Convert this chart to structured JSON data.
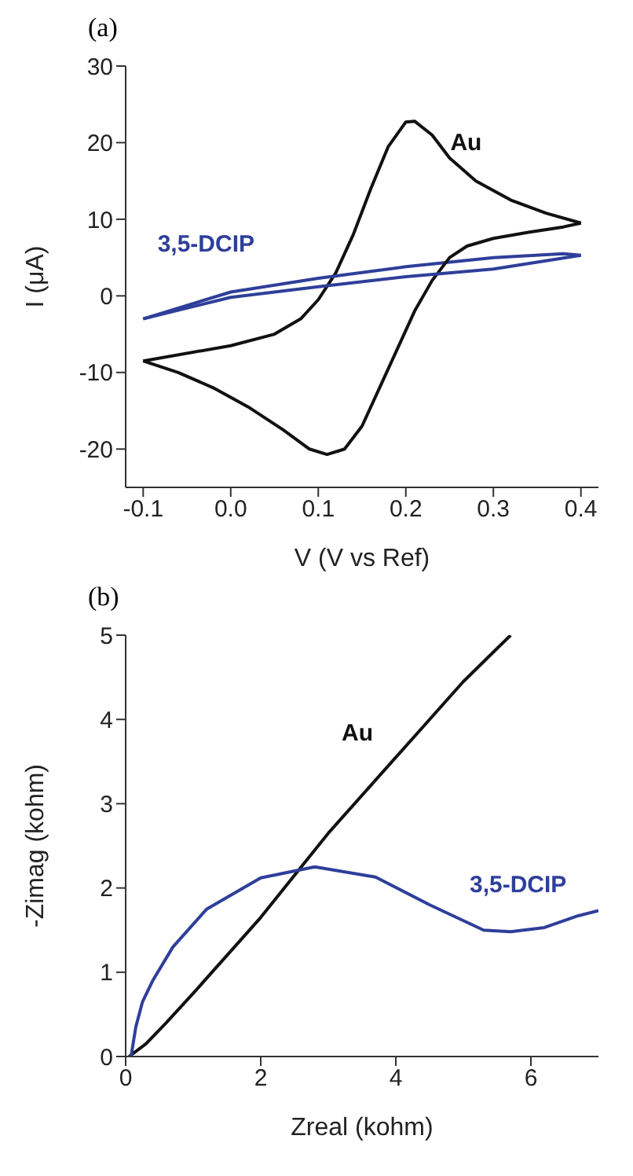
{
  "chart_data": [
    {
      "type": "line",
      "title": "(a)",
      "xlabel": "V (V vs Ref)",
      "ylabel": "I (μA)",
      "xlim": [
        -0.12,
        0.42
      ],
      "xticks": [
        {
          "value": -0.1,
          "label": "-0.1"
        },
        {
          "value": 0,
          "label": "0.0"
        },
        {
          "value": 0.1,
          "label": "0.1"
        },
        {
          "value": 0.2,
          "label": "0.2"
        },
        {
          "value": 0.3,
          "label": "0.3"
        },
        {
          "value": 0.4,
          "label": "0.4"
        }
      ],
      "ylim": [
        -25,
        30
      ],
      "yticks": [
        -20,
        -10,
        0,
        10,
        20,
        30
      ],
      "grid": false,
      "legend": false,
      "series": [
        {
          "name": "Au",
          "color": "#111111",
          "x": [
            -0.1,
            0,
            0.05,
            0.08,
            0.1,
            0.12,
            0.14,
            0.16,
            0.18,
            0.2,
            0.21,
            0.23,
            0.25,
            0.28,
            0.32,
            0.36,
            0.4
          ],
          "values": [
            -8.5,
            -6.5,
            -5,
            -3,
            -0.5,
            3,
            8,
            14,
            19.5,
            22.7,
            22.8,
            21,
            18,
            15,
            12.5,
            10.8,
            9.5
          ]
        },
        {
          "name": "3,5-DCIP",
          "color": "#2e3f9a",
          "x": [
            -0.1,
            0,
            0.1,
            0.2,
            0.3,
            0.38,
            0.4
          ],
          "values": [
            -3,
            0.5,
            2.3,
            3.8,
            5,
            5.5,
            5.3
          ]
        },
        {
          "color": "#111111",
          "x": [
            -0.1,
            -0.06,
            -0.02,
            0.02,
            0.06,
            0.09,
            0.11,
            0.13,
            0.15,
            0.17,
            0.19,
            0.21,
            0.23,
            0.25,
            0.27,
            0.3,
            0.34,
            0.38,
            0.4
          ],
          "values": [
            -8.5,
            -10,
            -12,
            -14.5,
            -17.5,
            -20,
            -20.7,
            -20,
            -17,
            -12,
            -7,
            -2,
            2,
            5,
            6.5,
            7.5,
            8.3,
            9,
            9.5
          ]
        },
        {
          "color": "#2e3f9a",
          "x": [
            -0.1,
            0,
            0.1,
            0.2,
            0.3,
            0.4
          ],
          "values": [
            -3,
            -0.2,
            1.2,
            2.5,
            3.5,
            5.3
          ]
        }
      ]
    },
    {
      "type": "line",
      "title": "(b)",
      "xlabel": "Zreal (kohm)",
      "ylabel": "-Zimag (kohm)",
      "xlim": [
        0,
        7
      ],
      "xticks": [
        0,
        2,
        4,
        6
      ],
      "ylim": [
        0,
        5
      ],
      "yticks": [
        0,
        1,
        2,
        3,
        4,
        5
      ],
      "grid": false,
      "legend": false,
      "series": [
        {
          "name": "Au",
          "color": "#111111",
          "x": [
            0.05,
            0.3,
            0.6,
            1,
            1.5,
            2,
            2.6,
            3,
            4,
            5,
            5.7
          ],
          "values": [
            0,
            0.15,
            0.4,
            0.75,
            1.2,
            1.65,
            2.25,
            2.65,
            3.55,
            4.45,
            5
          ]
        },
        {
          "name": "3,5-DCIP",
          "color": "#2e3f9a",
          "x": [
            0.08,
            0.15,
            0.25,
            0.4,
            0.7,
            1.2,
            2,
            2.8,
            3.7,
            4.5,
            5.3,
            5.7,
            6.2,
            6.7,
            7
          ],
          "values": [
            0,
            0.35,
            0.65,
            0.9,
            1.3,
            1.75,
            2.12,
            2.25,
            2.13,
            1.8,
            1.5,
            1.48,
            1.53,
            1.67,
            1.73
          ]
        }
      ]
    }
  ]
}
